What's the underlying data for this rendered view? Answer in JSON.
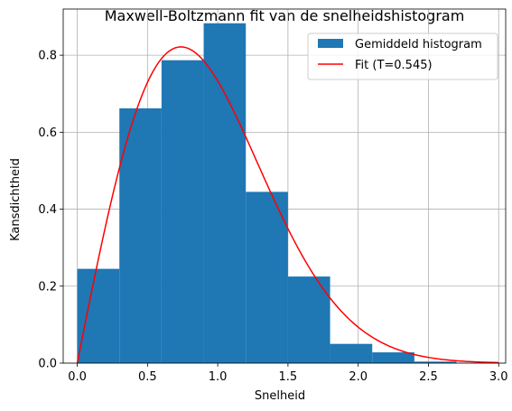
{
  "chart_data": {
    "type": "bar",
    "title": "Maxwell-Boltzmann fit van de snelheidshistogram",
    "xlabel": "Snelheid",
    "ylabel": "Kansdichtheid",
    "xlim": [
      -0.1,
      3.05
    ],
    "ylim": [
      0,
      0.92
    ],
    "xticks": [
      0.0,
      0.5,
      1.0,
      1.5,
      2.0,
      2.5,
      3.0
    ],
    "xtick_labels": [
      "0.0",
      "0.5",
      "1.0",
      "1.5",
      "2.0",
      "2.5",
      "3.0"
    ],
    "yticks": [
      0.0,
      0.2,
      0.4,
      0.6,
      0.8
    ],
    "ytick_labels": [
      "0.0",
      "0.2",
      "0.4",
      "0.6",
      "0.8"
    ],
    "grid": true,
    "legend_position": "top-right",
    "histogram": {
      "name": "Gemiddeld histogram",
      "color": "#1f77b4",
      "bin_edges": [
        0.0,
        0.3,
        0.6,
        0.9,
        1.2,
        1.5,
        1.8,
        2.1,
        2.4,
        2.7,
        3.0
      ],
      "values": [
        0.245,
        0.662,
        0.787,
        0.883,
        0.445,
        0.225,
        0.05,
        0.028,
        0.004,
        0.0
      ]
    },
    "fit": {
      "name": "Fit (T=0.545)",
      "color": "#ff0000",
      "T": 0.545,
      "x_range": [
        0,
        3.0
      ]
    }
  }
}
